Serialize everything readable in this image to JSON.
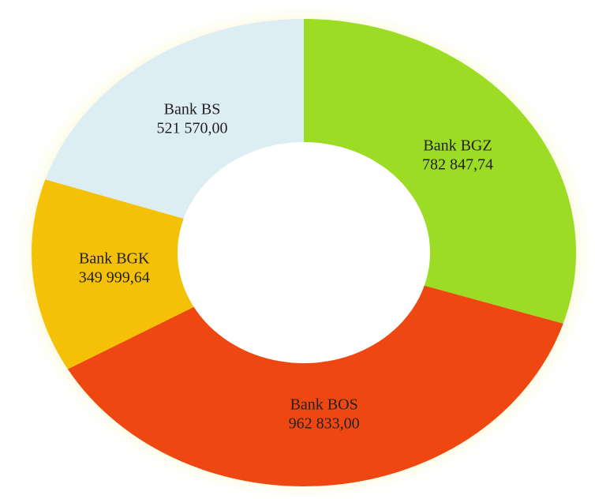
{
  "chart_data": {
    "type": "donut",
    "categories": [
      "Bank BGZ",
      "Bank BOS",
      "Bank BGK",
      "Bank BS"
    ],
    "values": [
      782847.74,
      962833.0,
      349999.64,
      521570.0
    ],
    "value_labels": [
      "782 847,74",
      "962 833,00",
      "349 999,64",
      "521 570,00"
    ],
    "colors": [
      "#9ddc24",
      "#ef4712",
      "#f5c106",
      "#ddedf4"
    ]
  }
}
